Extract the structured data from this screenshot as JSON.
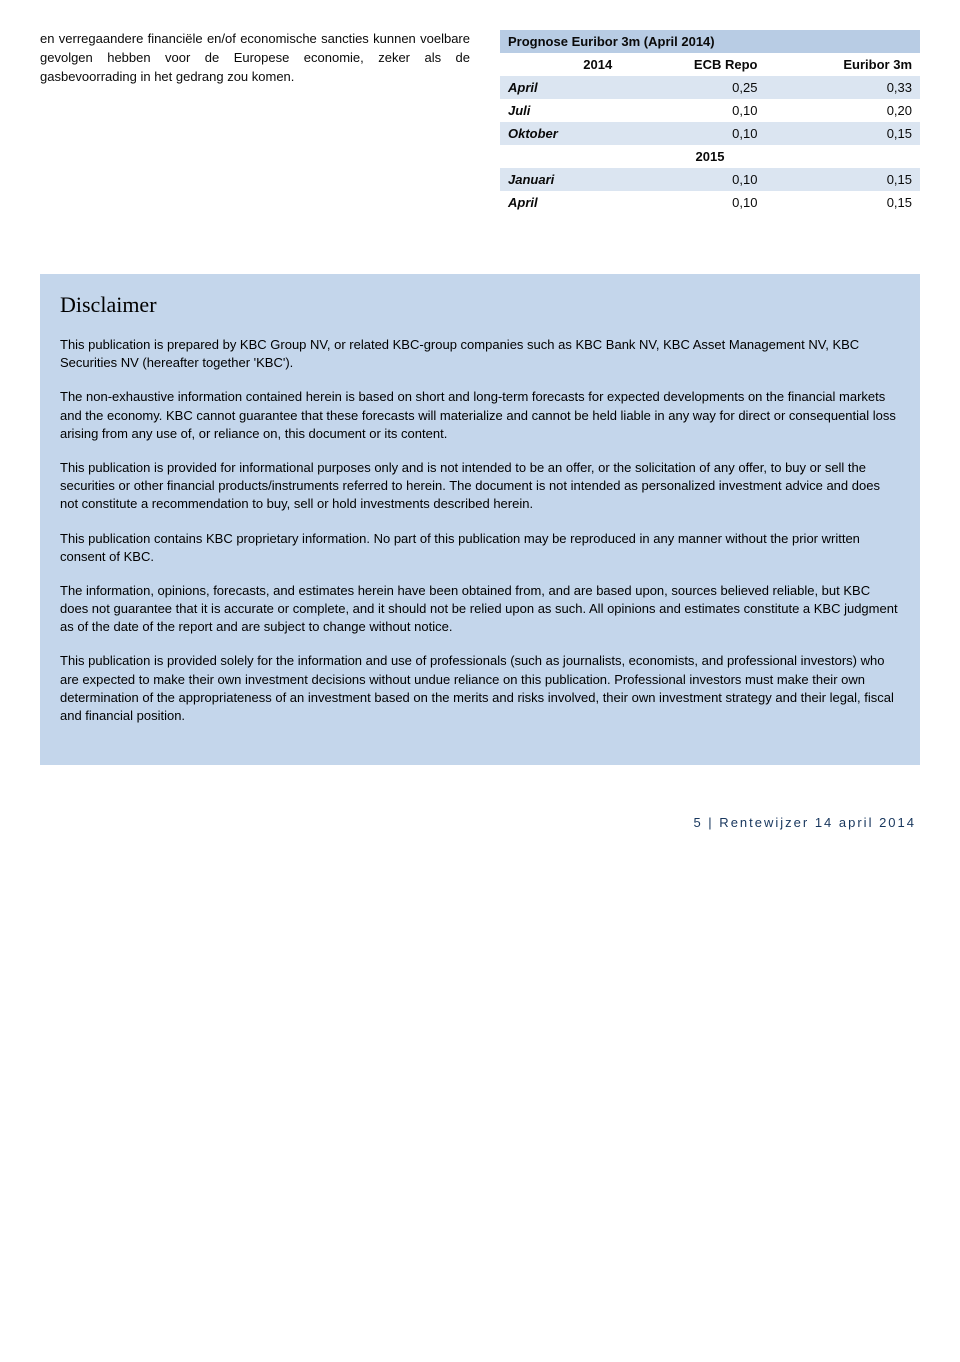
{
  "leftParagraph": "en verregaandere financiële en/of economische sancties kunnen voelbare gevolgen hebben voor de Europese economie, zeker als de gasbevoorrading in het gedrang zou komen.",
  "table": {
    "title": "Prognose Euribor 3m (April  2014)",
    "headerYear": "2014",
    "col1": "ECB Repo",
    "col2": "Euribor 3m",
    "midYear": "2015",
    "rows": [
      {
        "label": "April",
        "v1": "0,25",
        "v2": "0,33"
      },
      {
        "label": "Juli",
        "v1": "0,10",
        "v2": "0,20"
      },
      {
        "label": "Oktober",
        "v1": "0,10",
        "v2": "0,15"
      },
      {
        "label": "Januari",
        "v1": "0,10",
        "v2": "0,15"
      },
      {
        "label": "April",
        "v1": "0,10",
        "v2": "0,15"
      }
    ]
  },
  "disclaimer": {
    "title": "Disclaimer",
    "p1": "This publication is prepared by KBC Group NV, or related KBC-group companies such as KBC Bank NV, KBC Asset Management NV, KBC Securities NV (hereafter together 'KBC').",
    "p2": "The non-exhaustive information contained herein is based on short and long-term forecasts for expected developments on the financial markets and the economy. KBC cannot guarantee that these forecasts will materialize and cannot be held liable in any way for direct or consequential loss arising from any use of, or reliance on, this document or its content.",
    "p3": "This publication is provided for informational purposes only and is not intended to be an offer, or the solicitation of any offer, to buy or sell the securities or other financial products/instruments referred to herein. The document is not intended as personalized investment advice and does not constitute a recommendation to buy, sell or hold investments described herein.",
    "p4": "This publication contains KBC proprietary information. No part of this publication may be reproduced in any manner without the prior written consent of KBC.",
    "p5": "The information, opinions, forecasts, and estimates herein have been obtained from, and are based upon, sources believed reliable, but KBC does not guarantee that it is accurate or complete, and it should not be relied upon as such. All opinions and estimates constitute a KBC judgment as of the date of the report and are subject to change without notice.",
    "p6": "This publication is provided solely for the information and use of professionals (such as journalists, economists, and professional investors) who are expected to make their own investment decisions without undue reliance on this publication. Professional investors must make their own determination of the appropriateness of an investment based on the merits and risks involved, their own investment strategy and their legal, fiscal and financial position."
  },
  "footer": "5 | Rentewijzer 14 april 2014",
  "colors": {
    "tableTitleBg": "#b8cce4",
    "tableAltBg": "#dbe5f1",
    "disclaimerBg": "#c4d6eb",
    "footerColor": "#17365d"
  }
}
